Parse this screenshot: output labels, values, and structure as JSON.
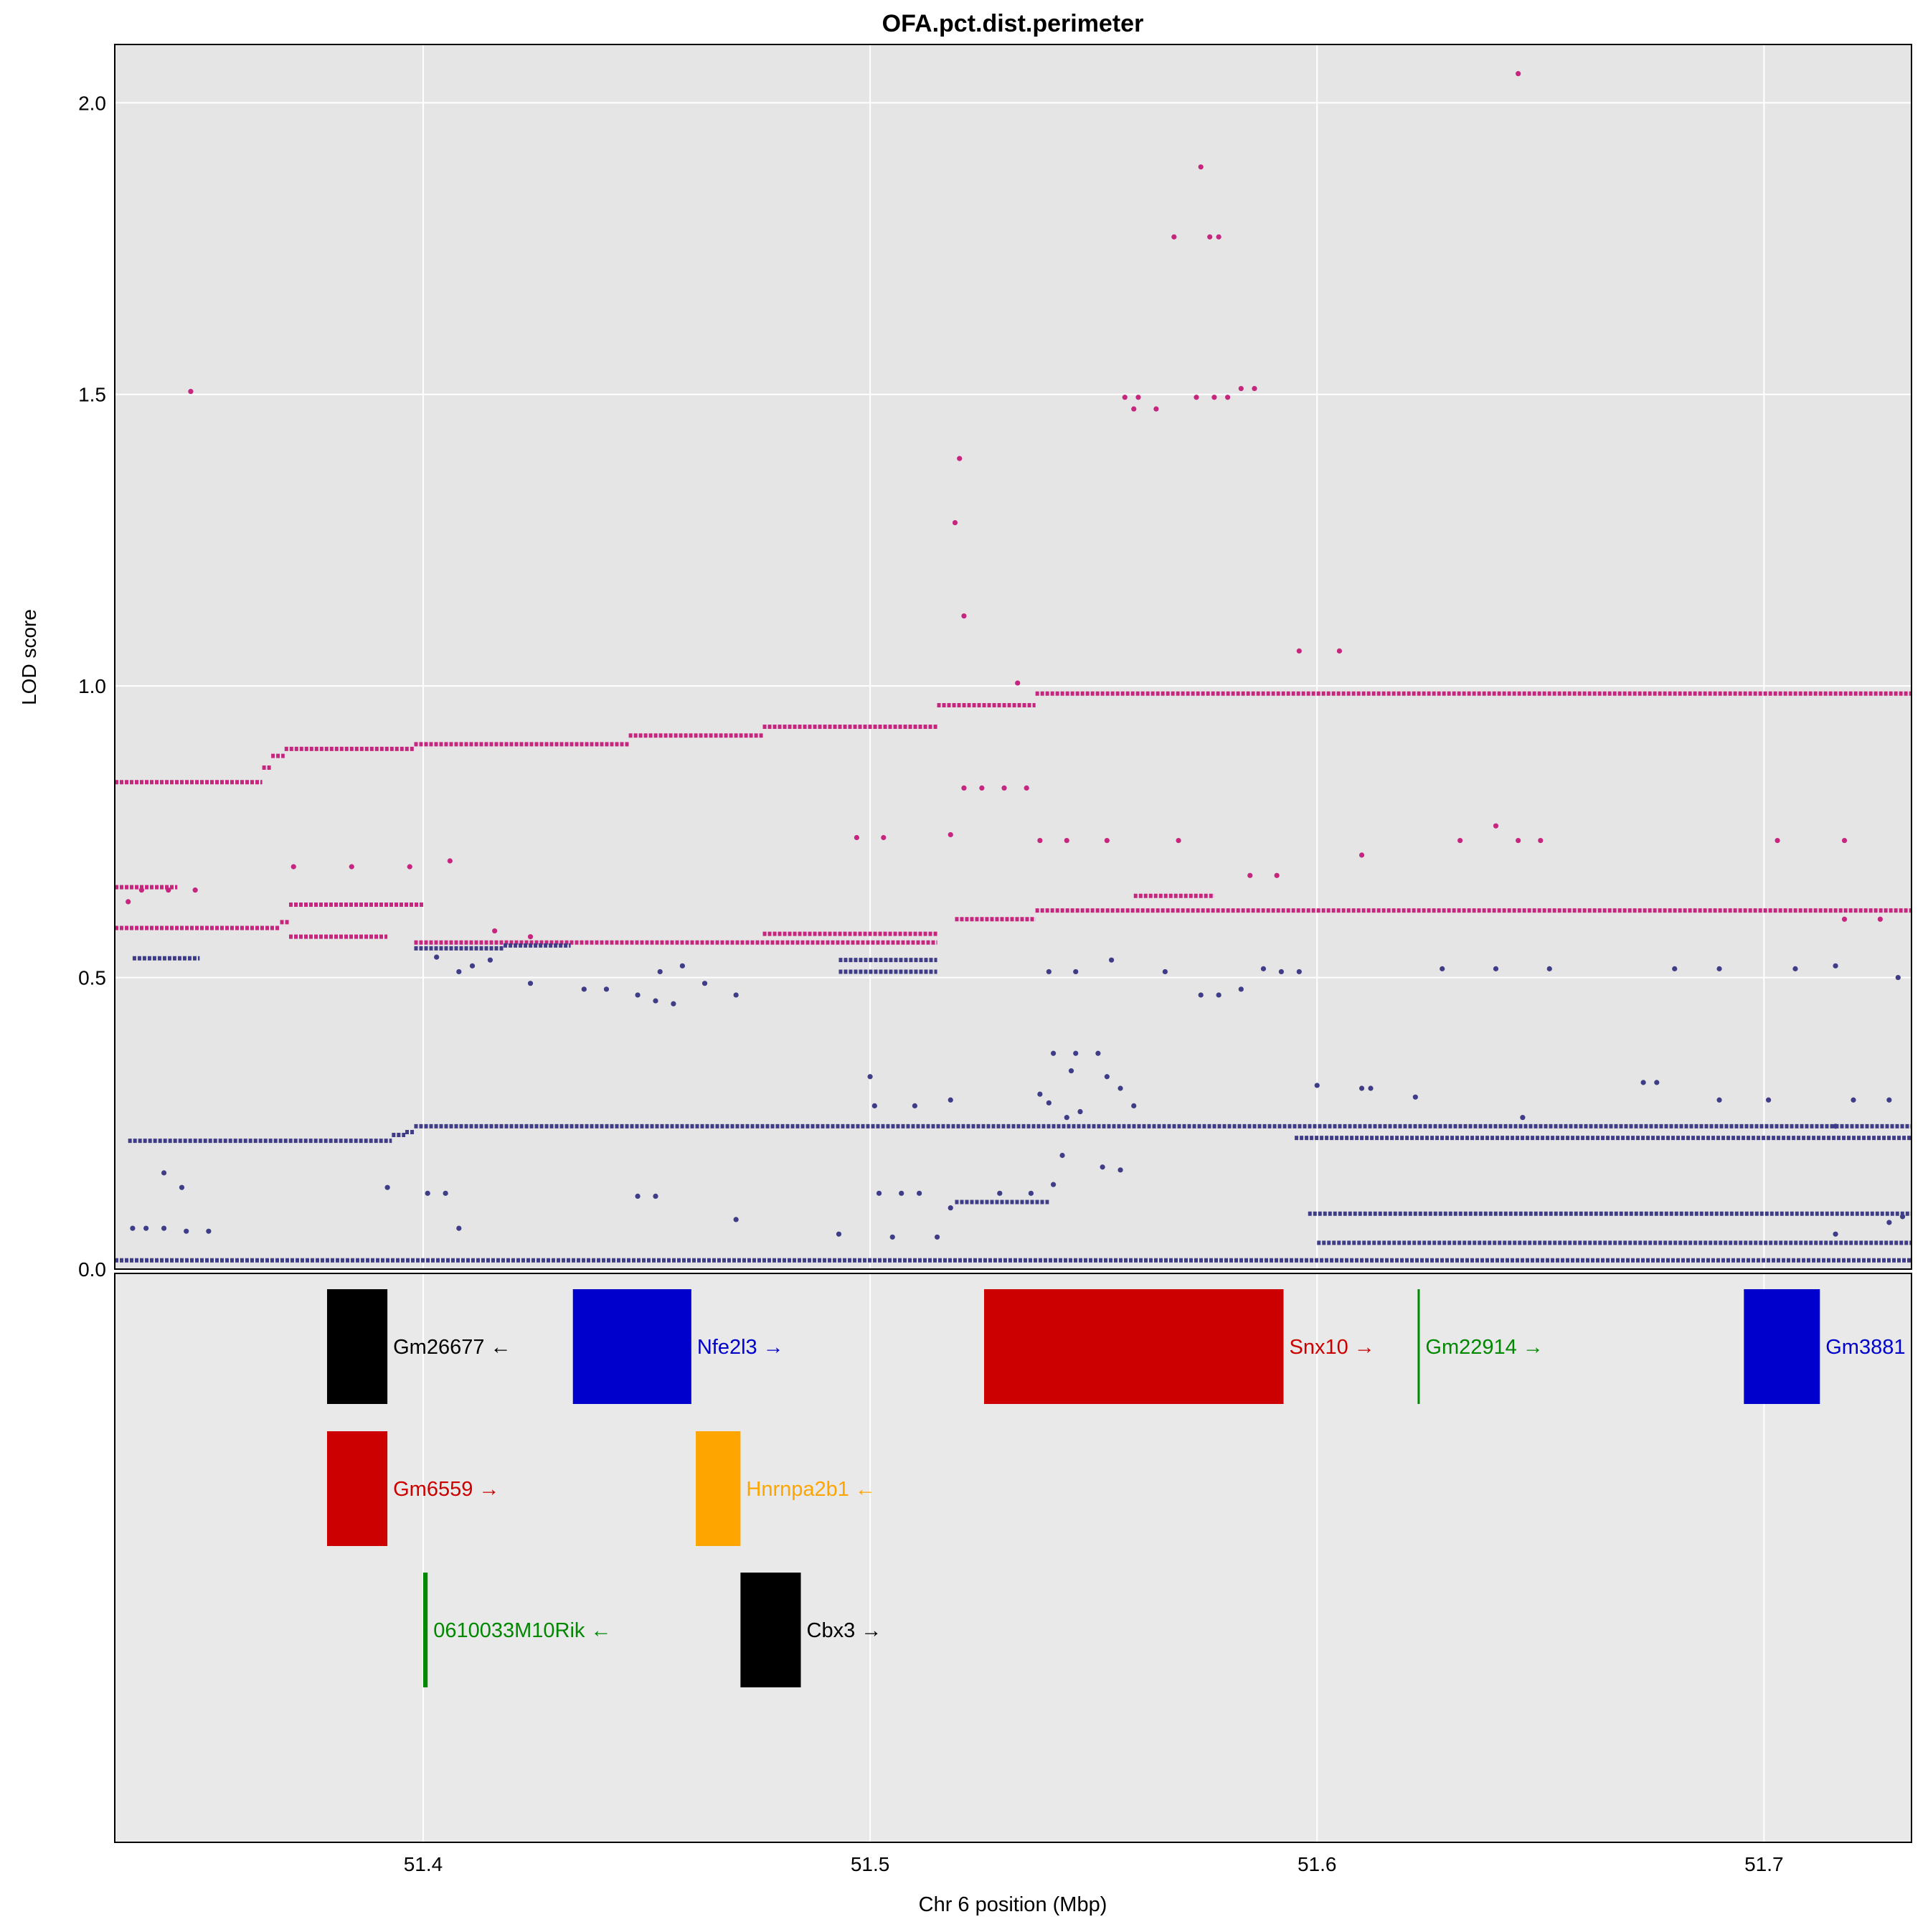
{
  "chart_data": {
    "type": "scatter",
    "title": "OFA.pct.dist.perimeter",
    "xlabel": "Chr 6 position (Mbp)",
    "ylabel": "LOD score",
    "xlim": [
      51.331,
      51.733
    ],
    "ylim": [
      0,
      2.1
    ],
    "x_ticks": [
      "51.4",
      "51.5",
      "51.6",
      "51.7"
    ],
    "y_ticks": [
      "0.0",
      "0.5",
      "1.0",
      "1.5",
      "2.0"
    ],
    "grid": true,
    "colors": {
      "high": "#c6267e",
      "low": "#3f3d87",
      "panel_bg": "#e5e5e5",
      "genes_bg": "#e9e9e9"
    },
    "series": [
      {
        "color": "#c6267e",
        "segments": [
          {
            "x0": 51.331,
            "x1": 51.364,
            "y": 0.835
          },
          {
            "x0": 51.364,
            "x1": 51.366,
            "y": 0.86
          },
          {
            "x0": 51.366,
            "x1": 51.369,
            "y": 0.88
          },
          {
            "x0": 51.369,
            "x1": 51.398,
            "y": 0.892
          },
          {
            "x0": 51.398,
            "x1": 51.446,
            "y": 0.9
          },
          {
            "x0": 51.446,
            "x1": 51.476,
            "y": 0.915
          },
          {
            "x0": 51.476,
            "x1": 51.515,
            "y": 0.93
          },
          {
            "x0": 51.515,
            "x1": 51.537,
            "y": 0.967
          },
          {
            "x0": 51.537,
            "x1": 51.733,
            "y": 0.987
          },
          {
            "x0": 51.331,
            "x1": 51.368,
            "y": 0.585
          },
          {
            "x0": 51.368,
            "x1": 51.37,
            "y": 0.595
          },
          {
            "x0": 51.37,
            "x1": 51.4,
            "y": 0.625
          },
          {
            "x0": 51.37,
            "x1": 51.392,
            "y": 0.57
          },
          {
            "x0": 51.398,
            "x1": 51.515,
            "y": 0.56
          },
          {
            "x0": 51.476,
            "x1": 51.515,
            "y": 0.575
          },
          {
            "x0": 51.519,
            "x1": 51.537,
            "y": 0.6
          },
          {
            "x0": 51.537,
            "x1": 51.733,
            "y": 0.615
          },
          {
            "x0": 51.331,
            "x1": 51.345,
            "y": 0.655
          },
          {
            "x0": 51.559,
            "x1": 51.577,
            "y": 0.64
          }
        ],
        "points": [
          {
            "x": 51.348,
            "y": 1.505
          },
          {
            "x": 51.52,
            "y": 1.39
          },
          {
            "x": 51.519,
            "y": 1.28
          },
          {
            "x": 51.521,
            "y": 1.12
          },
          {
            "x": 51.533,
            "y": 1.005
          },
          {
            "x": 51.596,
            "y": 1.06
          },
          {
            "x": 51.605,
            "y": 1.06
          },
          {
            "x": 51.645,
            "y": 2.05
          },
          {
            "x": 51.574,
            "y": 1.89
          },
          {
            "x": 51.568,
            "y": 1.77
          },
          {
            "x": 51.576,
            "y": 1.77
          },
          {
            "x": 51.578,
            "y": 1.77
          },
          {
            "x": 51.557,
            "y": 1.495
          },
          {
            "x": 51.56,
            "y": 1.495
          },
          {
            "x": 51.564,
            "y": 1.475
          },
          {
            "x": 51.573,
            "y": 1.495
          },
          {
            "x": 51.577,
            "y": 1.495
          },
          {
            "x": 51.58,
            "y": 1.495
          },
          {
            "x": 51.583,
            "y": 1.51
          },
          {
            "x": 51.586,
            "y": 1.51
          },
          {
            "x": 51.559,
            "y": 1.475
          },
          {
            "x": 51.521,
            "y": 0.825
          },
          {
            "x": 51.525,
            "y": 0.825
          },
          {
            "x": 51.53,
            "y": 0.825
          },
          {
            "x": 51.535,
            "y": 0.825
          },
          {
            "x": 51.518,
            "y": 0.745
          },
          {
            "x": 51.497,
            "y": 0.74
          },
          {
            "x": 51.503,
            "y": 0.74
          },
          {
            "x": 51.538,
            "y": 0.735
          },
          {
            "x": 51.544,
            "y": 0.735
          },
          {
            "x": 51.553,
            "y": 0.735
          },
          {
            "x": 51.569,
            "y": 0.735
          },
          {
            "x": 51.61,
            "y": 0.71
          },
          {
            "x": 51.632,
            "y": 0.735
          },
          {
            "x": 51.64,
            "y": 0.76
          },
          {
            "x": 51.645,
            "y": 0.735
          },
          {
            "x": 51.65,
            "y": 0.735
          },
          {
            "x": 51.703,
            "y": 0.735
          },
          {
            "x": 51.718,
            "y": 0.735
          },
          {
            "x": 51.371,
            "y": 0.69
          },
          {
            "x": 51.384,
            "y": 0.69
          },
          {
            "x": 51.397,
            "y": 0.69
          },
          {
            "x": 51.406,
            "y": 0.7
          },
          {
            "x": 51.585,
            "y": 0.675
          },
          {
            "x": 51.591,
            "y": 0.675
          },
          {
            "x": 51.334,
            "y": 0.63
          },
          {
            "x": 51.337,
            "y": 0.65
          },
          {
            "x": 51.343,
            "y": 0.65
          },
          {
            "x": 51.349,
            "y": 0.65
          },
          {
            "x": 51.416,
            "y": 0.58
          },
          {
            "x": 51.424,
            "y": 0.57
          },
          {
            "x": 51.718,
            "y": 0.6
          },
          {
            "x": 51.726,
            "y": 0.6
          }
        ]
      },
      {
        "color": "#3f3d87",
        "segments": [
          {
            "x0": 51.334,
            "x1": 51.393,
            "y": 0.22
          },
          {
            "x0": 51.393,
            "x1": 51.396,
            "y": 0.23
          },
          {
            "x0": 51.396,
            "x1": 51.398,
            "y": 0.235
          },
          {
            "x0": 51.398,
            "x1": 51.733,
            "y": 0.245
          },
          {
            "x0": 51.595,
            "x1": 51.733,
            "y": 0.225
          },
          {
            "x0": 51.331,
            "x1": 51.733,
            "y": 0.015
          },
          {
            "x0": 51.335,
            "x1": 51.35,
            "y": 0.533
          },
          {
            "x0": 51.398,
            "x1": 51.418,
            "y": 0.55
          },
          {
            "x0": 51.418,
            "x1": 51.433,
            "y": 0.555
          },
          {
            "x0": 51.493,
            "x1": 51.515,
            "y": 0.53
          },
          {
            "x0": 51.493,
            "x1": 51.515,
            "y": 0.51
          },
          {
            "x0": 51.6,
            "x1": 51.733,
            "y": 0.045
          },
          {
            "x0": 51.598,
            "x1": 51.733,
            "y": 0.095
          },
          {
            "x0": 51.519,
            "x1": 51.54,
            "y": 0.115
          }
        ],
        "points": [
          {
            "x": 51.541,
            "y": 0.37
          },
          {
            "x": 51.546,
            "y": 0.37
          },
          {
            "x": 51.551,
            "y": 0.37
          },
          {
            "x": 51.553,
            "y": 0.33
          },
          {
            "x": 51.556,
            "y": 0.31
          },
          {
            "x": 51.559,
            "y": 0.28
          },
          {
            "x": 51.545,
            "y": 0.34
          },
          {
            "x": 51.54,
            "y": 0.285
          },
          {
            "x": 51.547,
            "y": 0.27
          },
          {
            "x": 51.544,
            "y": 0.26
          },
          {
            "x": 51.538,
            "y": 0.3
          },
          {
            "x": 51.552,
            "y": 0.175
          },
          {
            "x": 51.556,
            "y": 0.17
          },
          {
            "x": 51.541,
            "y": 0.145
          },
          {
            "x": 51.543,
            "y": 0.195
          },
          {
            "x": 51.5,
            "y": 0.33
          },
          {
            "x": 51.51,
            "y": 0.28
          },
          {
            "x": 51.518,
            "y": 0.29
          },
          {
            "x": 51.501,
            "y": 0.28
          },
          {
            "x": 51.588,
            "y": 0.515
          },
          {
            "x": 51.592,
            "y": 0.51
          },
          {
            "x": 51.596,
            "y": 0.51
          },
          {
            "x": 51.574,
            "y": 0.47
          },
          {
            "x": 51.578,
            "y": 0.47
          },
          {
            "x": 51.583,
            "y": 0.48
          },
          {
            "x": 51.566,
            "y": 0.51
          },
          {
            "x": 51.554,
            "y": 0.53
          },
          {
            "x": 51.54,
            "y": 0.51
          },
          {
            "x": 51.546,
            "y": 0.51
          },
          {
            "x": 51.628,
            "y": 0.515
          },
          {
            "x": 51.64,
            "y": 0.515
          },
          {
            "x": 51.652,
            "y": 0.515
          },
          {
            "x": 51.68,
            "y": 0.515
          },
          {
            "x": 51.69,
            "y": 0.515
          },
          {
            "x": 51.707,
            "y": 0.515
          },
          {
            "x": 51.716,
            "y": 0.52
          },
          {
            "x": 51.73,
            "y": 0.5
          },
          {
            "x": 51.424,
            "y": 0.49
          },
          {
            "x": 51.436,
            "y": 0.48
          },
          {
            "x": 51.441,
            "y": 0.48
          },
          {
            "x": 51.448,
            "y": 0.47
          },
          {
            "x": 51.452,
            "y": 0.46
          },
          {
            "x": 51.456,
            "y": 0.455
          },
          {
            "x": 51.463,
            "y": 0.49
          },
          {
            "x": 51.47,
            "y": 0.47
          },
          {
            "x": 51.403,
            "y": 0.535
          },
          {
            "x": 51.408,
            "y": 0.51
          },
          {
            "x": 51.411,
            "y": 0.52
          },
          {
            "x": 51.415,
            "y": 0.53
          },
          {
            "x": 51.453,
            "y": 0.51
          },
          {
            "x": 51.458,
            "y": 0.52
          },
          {
            "x": 51.335,
            "y": 0.07
          },
          {
            "x": 51.338,
            "y": 0.07
          },
          {
            "x": 51.342,
            "y": 0.07
          },
          {
            "x": 51.347,
            "y": 0.065
          },
          {
            "x": 51.346,
            "y": 0.14
          },
          {
            "x": 51.342,
            "y": 0.165
          },
          {
            "x": 51.352,
            "y": 0.065
          },
          {
            "x": 51.401,
            "y": 0.13
          },
          {
            "x": 51.405,
            "y": 0.13
          },
          {
            "x": 51.392,
            "y": 0.14
          },
          {
            "x": 51.408,
            "y": 0.07
          },
          {
            "x": 51.448,
            "y": 0.125
          },
          {
            "x": 51.452,
            "y": 0.125
          },
          {
            "x": 51.47,
            "y": 0.085
          },
          {
            "x": 51.502,
            "y": 0.13
          },
          {
            "x": 51.507,
            "y": 0.13
          },
          {
            "x": 51.511,
            "y": 0.13
          },
          {
            "x": 51.518,
            "y": 0.105
          },
          {
            "x": 51.529,
            "y": 0.13
          },
          {
            "x": 51.536,
            "y": 0.13
          },
          {
            "x": 51.493,
            "y": 0.06
          },
          {
            "x": 51.505,
            "y": 0.055
          },
          {
            "x": 51.515,
            "y": 0.055
          },
          {
            "x": 51.6,
            "y": 0.315
          },
          {
            "x": 51.61,
            "y": 0.31
          },
          {
            "x": 51.612,
            "y": 0.31
          },
          {
            "x": 51.622,
            "y": 0.295
          },
          {
            "x": 51.673,
            "y": 0.32
          },
          {
            "x": 51.676,
            "y": 0.32
          },
          {
            "x": 51.69,
            "y": 0.29
          },
          {
            "x": 51.701,
            "y": 0.29
          },
          {
            "x": 51.72,
            "y": 0.29
          },
          {
            "x": 51.728,
            "y": 0.29
          },
          {
            "x": 51.646,
            "y": 0.26
          },
          {
            "x": 51.716,
            "y": 0.245
          },
          {
            "x": 51.731,
            "y": 0.09
          },
          {
            "x": 51.716,
            "y": 0.06
          },
          {
            "x": 51.728,
            "y": 0.08
          }
        ]
      }
    ]
  },
  "genes": [
    {
      "name": "Gm26677",
      "start": 51.3785,
      "end": 51.392,
      "row": 0,
      "strand": "←",
      "color": "#000000"
    },
    {
      "name": "Nfe2l3",
      "start": 51.4335,
      "end": 51.46,
      "row": 0,
      "strand": "→",
      "color": "#0000cc"
    },
    {
      "name": "Snx10",
      "start": 51.5255,
      "end": 51.5925,
      "row": 0,
      "strand": "→",
      "color": "#cc0000"
    },
    {
      "name": "Gm22914",
      "start": 51.6225,
      "end": 51.6228,
      "row": 0,
      "strand": "→",
      "color": "#008800"
    },
    {
      "name": "Gm3881",
      "start": 51.6955,
      "end": 51.7125,
      "row": 0,
      "strand": "",
      "color": "#0000cc"
    },
    {
      "name": "Gm6559",
      "start": 51.3785,
      "end": 51.392,
      "row": 1,
      "strand": "→",
      "color": "#cc0000"
    },
    {
      "name": "Hnrnpa2b1",
      "start": 51.461,
      "end": 51.471,
      "row": 1,
      "strand": "←",
      "color": "#ffa500"
    },
    {
      "name": "0610033M10Rik",
      "start": 51.4,
      "end": 51.401,
      "row": 2,
      "strand": "←",
      "color": "#008800"
    },
    {
      "name": "Cbx3",
      "start": 51.471,
      "end": 51.4845,
      "row": 2,
      "strand": "→",
      "color": "#000000"
    }
  ]
}
